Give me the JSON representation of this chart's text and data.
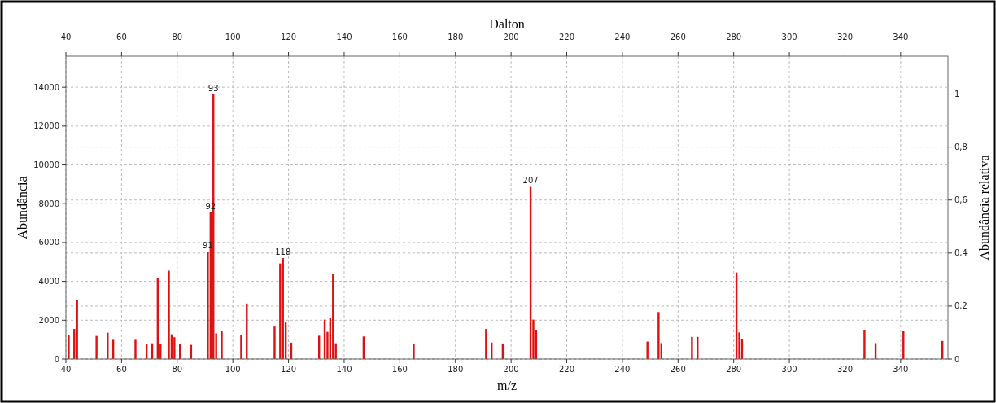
{
  "chart_data": {
    "type": "bar",
    "xlabel": "m/z",
    "x2label": "Dalton",
    "ylabel": "Abundância",
    "y2label": "Abundância relativa",
    "x": [
      41,
      43,
      44,
      51,
      55,
      57,
      65,
      69,
      71,
      73,
      74,
      77,
      78,
      79,
      81,
      85,
      91,
      92,
      93,
      94,
      96,
      103,
      105,
      115,
      117,
      118,
      119,
      121,
      131,
      133,
      134,
      135,
      136,
      137,
      147,
      165,
      191,
      193,
      197,
      207,
      208,
      209,
      249,
      253,
      254,
      265,
      267,
      281,
      282,
      283,
      327,
      331,
      341,
      355
    ],
    "values": [
      1230,
      1550,
      3050,
      1190,
      1360,
      990,
      990,
      770,
      810,
      4160,
      770,
      4550,
      1270,
      1120,
      770,
      730,
      5530,
      7560,
      13650,
      1320,
      1470,
      1230,
      2860,
      1670,
      4920,
      5200,
      1880,
      840,
      1200,
      2030,
      1400,
      2100,
      4360,
      810,
      1160,
      770,
      1550,
      850,
      800,
      8870,
      2030,
      1510,
      900,
      2420,
      820,
      1140,
      1140,
      4460,
      1370,
      1010,
      1510,
      820,
      1440,
      930
    ],
    "color": "#dd1111",
    "xlim": [
      40,
      357
    ],
    "xticks": [
      40,
      60,
      80,
      100,
      120,
      140,
      160,
      180,
      200,
      220,
      240,
      260,
      280,
      300,
      320,
      340
    ],
    "x2lim": [
      40,
      357
    ],
    "x2ticks": [
      40,
      60,
      80,
      100,
      120,
      140,
      160,
      180,
      200,
      220,
      240,
      260,
      280,
      300,
      320,
      340
    ],
    "ylim": [
      0,
      15600
    ],
    "yticks": [
      0,
      2000,
      4000,
      6000,
      8000,
      10000,
      12000,
      14000
    ],
    "y2lim": [
      0,
      1.143
    ],
    "y2ticks": [
      0,
      {
        "value": 0.2,
        "label": "0,2"
      },
      {
        "value": 0.4,
        "label": "0,4"
      },
      {
        "value": 0.6,
        "label": "0,6"
      },
      {
        "value": 0.8,
        "label": "0,8"
      },
      1
    ],
    "grid": true,
    "annotations": [
      {
        "text": "91",
        "x": 91,
        "y": 5530
      },
      {
        "text": "92",
        "x": 92,
        "y": 7560
      },
      {
        "text": "93",
        "x": 93,
        "y": 13650
      },
      {
        "text": "118",
        "x": 118,
        "y": 5200
      },
      {
        "text": "207",
        "x": 207,
        "y": 8870
      }
    ]
  }
}
